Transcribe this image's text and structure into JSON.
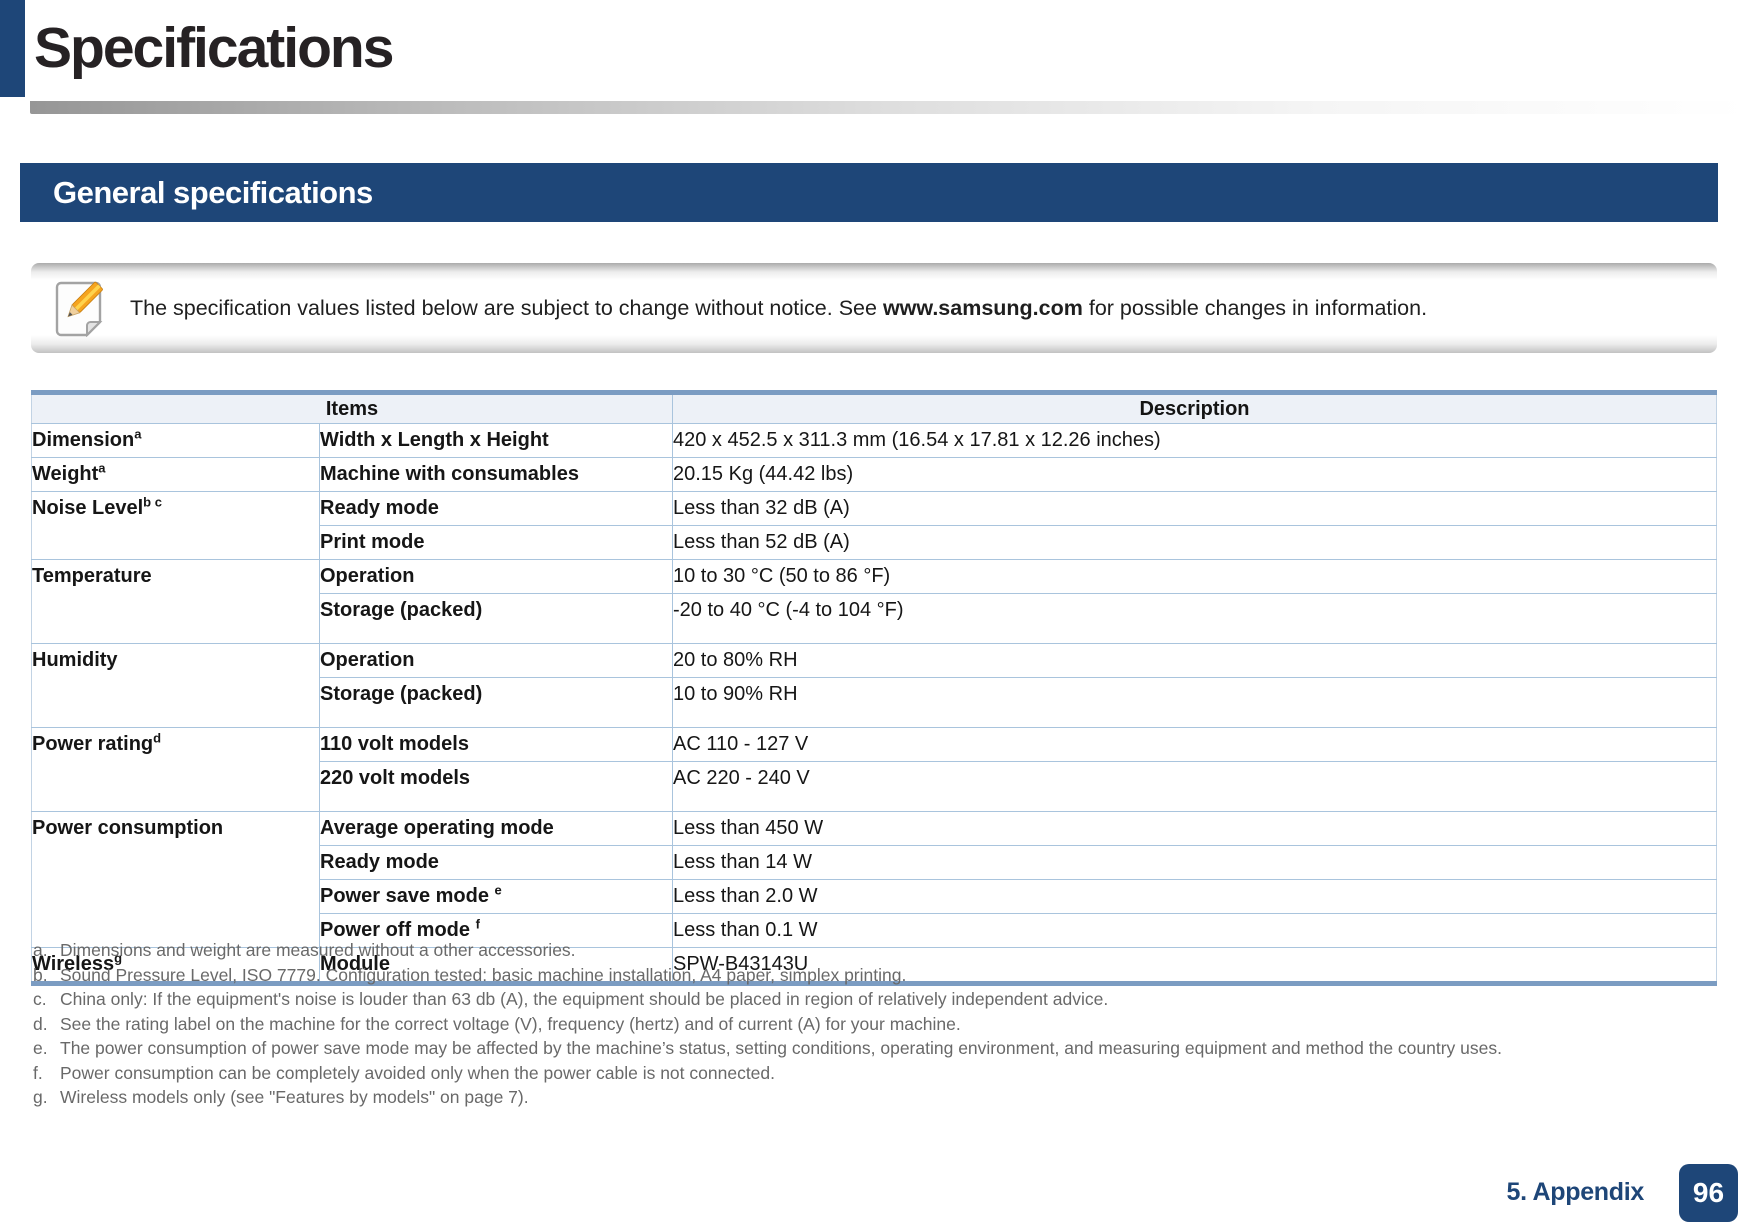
{
  "page": {
    "title": "Specifications",
    "section_title": "General specifications",
    "note": {
      "text_before": "The specification values listed below are subject to change without notice. See ",
      "link": "www.samsung.com",
      "text_after": " for possible changes in information."
    },
    "footer": {
      "chapter": "5. Appendix",
      "page_number": "96"
    }
  },
  "table": {
    "headers": {
      "items": "Items",
      "description": "Description"
    },
    "groups": [
      {
        "item": "Dimension",
        "sup": "a",
        "rows": [
          {
            "label": "Width x Length x Height",
            "value": "420 x 452.5 x 311.3 mm (16.54 x 17.81 x 12.26 inches)",
            "tall": false
          }
        ]
      },
      {
        "item": "Weight",
        "sup": "a",
        "rows": [
          {
            "label": "Machine with consumables",
            "value": "20.15 Kg (44.42 lbs)",
            "tall": false
          }
        ]
      },
      {
        "item": "Noise Level",
        "sup": "b c",
        "rows": [
          {
            "label": "Ready mode",
            "value": "Less than 32 dB (A)",
            "tall": false
          },
          {
            "label": "Print mode",
            "value": "Less than 52 dB (A)",
            "tall": false
          }
        ]
      },
      {
        "item": "Temperature",
        "sup": "",
        "rows": [
          {
            "label": "Operation",
            "value": "10 to 30 °C (50 to 86 °F)",
            "tall": false
          },
          {
            "label": "Storage (packed)",
            "value": "-20 to 40 °C (-4 to 104 °F)",
            "tall": true
          }
        ]
      },
      {
        "item": "Humidity",
        "sup": "",
        "rows": [
          {
            "label": "Operation",
            "value": "20 to 80% RH",
            "tall": false
          },
          {
            "label": "Storage (packed)",
            "value": "10 to 90% RH",
            "tall": true
          }
        ]
      },
      {
        "item": "Power rating",
        "sup": "d",
        "rows": [
          {
            "label": "110 volt models",
            "value": "AC 110 - 127 V",
            "tall": false
          },
          {
            "label": "220 volt models",
            "value": "AC 220 - 240 V",
            "tall": true
          }
        ]
      },
      {
        "item": "Power consumption",
        "sup": "",
        "rows": [
          {
            "label": "Average operating mode",
            "value": "Less than 450 W",
            "tall": false
          },
          {
            "label": "Ready mode",
            "value": "Less than 14 W",
            "tall": false
          },
          {
            "label": "Power save mode",
            "label_sup": "e",
            "value": "Less than 2.0 W",
            "tall": false
          },
          {
            "label": "Power off mode",
            "label_sup": "f",
            "value": "Less than 0.1 W",
            "tall": false
          }
        ]
      },
      {
        "item": "Wireless",
        "sup": "g",
        "rows": [
          {
            "label": "Module",
            "value": "SPW-B43143U",
            "tall": false
          }
        ]
      }
    ]
  },
  "footnotes": [
    {
      "marker": "a.",
      "text": "Dimensions and weight are measured without a other accessories."
    },
    {
      "marker": "b.",
      "text": "Sound Pressure Level, ISO 7779. Configuration tested: basic machine installation, A4 paper, simplex printing."
    },
    {
      "marker": "c.",
      "text": "China only: If the equipment's noise is louder than 63 db (A), the equipment should be placed in region of relatively independent advice."
    },
    {
      "marker": "d.",
      "text": "See the rating label on the machine for the correct voltage (V), frequency (hertz) and of current (A) for your machine."
    },
    {
      "marker": "e.",
      "text": "The power consumption of power save mode may be affected by the machine’s status, setting conditions, operating environment, and measuring equipment and method the country uses."
    },
    {
      "marker": "f.",
      "text": "Power consumption can be completely avoided only when the power cable is not connected."
    },
    {
      "marker": "g.",
      "text": "Wireless models only (see \"Features by models\" on page 7)."
    }
  ],
  "colors": {
    "navy": "#1e4678",
    "table_bar": "#7b9cc2",
    "row_line": "#a9c4dd",
    "header_bg": "#edf1f7",
    "footnote_gray": "#696969",
    "pencil_orange": "#f6a41f",
    "pencil_yellow": "#ffd34d"
  }
}
